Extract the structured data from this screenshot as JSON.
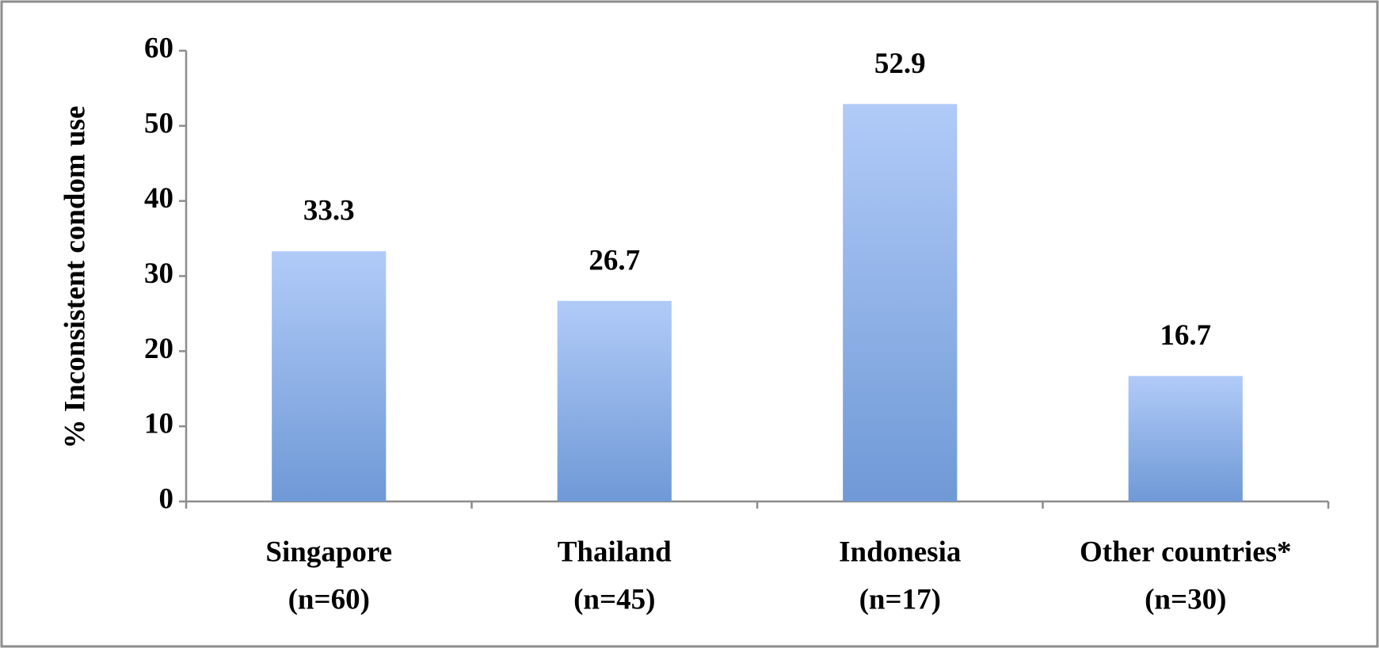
{
  "chart_data": {
    "type": "bar",
    "y_axis_label": "% Inconsistent condom use",
    "categories": [
      [
        "Singapore",
        "(n=60)"
      ],
      [
        "Thailand",
        "(n=45)"
      ],
      [
        "Indonesia",
        "(n=17)"
      ],
      [
        "Other countries*",
        "(n=30)"
      ]
    ],
    "values": [
      33.3,
      26.7,
      52.9,
      16.7
    ],
    "color": "#6f99d6",
    "ylim": [
      0,
      60
    ],
    "yticks": [
      0,
      10,
      20,
      30,
      40,
      50,
      60
    ],
    "grid": false
  }
}
